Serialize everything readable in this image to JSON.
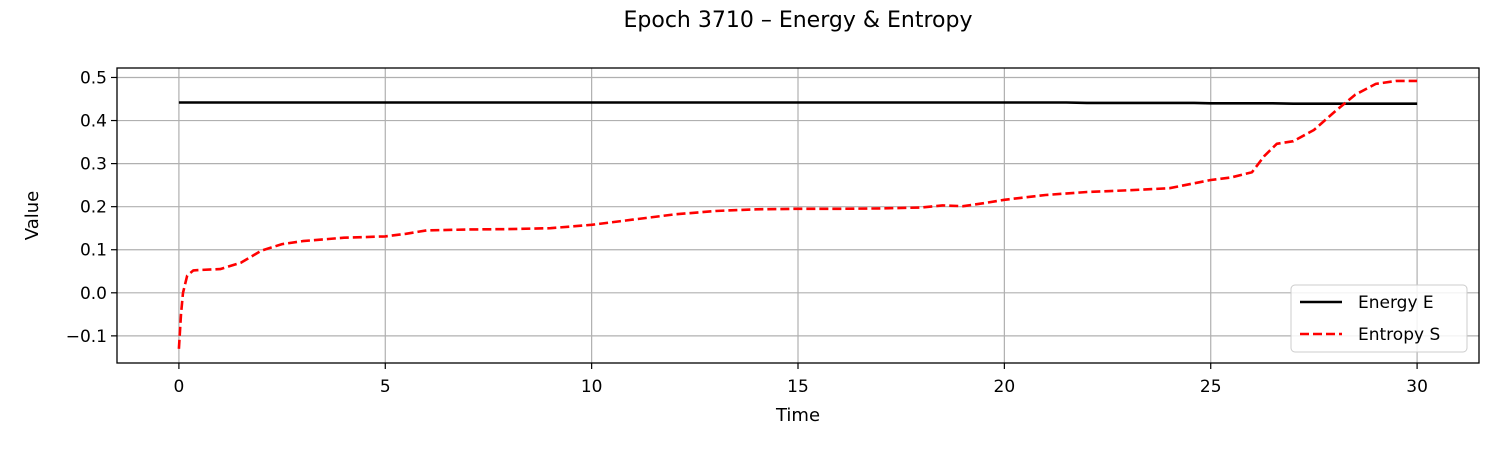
{
  "chart_data": {
    "type": "line",
    "title": "Epoch 3710 – Energy & Entropy",
    "xlabel": "Time",
    "ylabel": "Value",
    "xlim": [
      -1.5,
      31.5
    ],
    "ylim": [
      -0.163,
      0.522
    ],
    "xticks": [
      0,
      5,
      10,
      15,
      20,
      25,
      30
    ],
    "yticks": [
      -0.1,
      0.0,
      0.1,
      0.2,
      0.3,
      0.4,
      0.5
    ],
    "xtick_labels": [
      "0",
      "5",
      "10",
      "15",
      "20",
      "25",
      "30"
    ],
    "ytick_labels": [
      "−0.1",
      "0.0",
      "0.1",
      "0.2",
      "0.3",
      "0.4",
      "0.5"
    ],
    "grid": true,
    "legend_position": "lower-right",
    "series": [
      {
        "name": "Energy E",
        "color": "#000000",
        "style": "solid",
        "x": [
          0,
          2,
          4,
          6,
          8,
          10,
          12,
          14,
          16,
          18,
          20,
          21.5,
          22,
          24,
          24.6,
          25,
          25.5,
          26.5,
          27,
          28,
          29,
          30
        ],
        "y": [
          0.442,
          0.442,
          0.442,
          0.442,
          0.442,
          0.442,
          0.442,
          0.442,
          0.442,
          0.442,
          0.442,
          0.442,
          0.441,
          0.441,
          0.441,
          0.44,
          0.44,
          0.44,
          0.439,
          0.439,
          0.439,
          0.439
        ]
      },
      {
        "name": "Entropy S",
        "color": "#ff0000",
        "style": "dashed",
        "x": [
          0,
          0.05,
          0.1,
          0.2,
          0.35,
          0.5,
          1.0,
          1.5,
          2.0,
          2.5,
          3.0,
          4.0,
          5.0,
          5.5,
          6.0,
          7.0,
          8.0,
          9.0,
          10.0,
          11.0,
          12.0,
          13.0,
          14.0,
          15.0,
          16.0,
          17.0,
          18.0,
          18.5,
          19.0,
          19.5,
          20.0,
          21.0,
          22.0,
          23.0,
          24.0,
          25.0,
          25.5,
          26.0,
          26.3,
          26.6,
          27.0,
          27.5,
          28.0,
          28.5,
          29.0,
          29.5,
          30.0
        ],
        "y": [
          -0.13,
          -0.05,
          0.0,
          0.04,
          0.052,
          0.053,
          0.055,
          0.07,
          0.098,
          0.113,
          0.12,
          0.128,
          0.131,
          0.137,
          0.145,
          0.147,
          0.148,
          0.15,
          0.158,
          0.17,
          0.182,
          0.19,
          0.194,
          0.195,
          0.195,
          0.196,
          0.198,
          0.203,
          0.201,
          0.208,
          0.216,
          0.227,
          0.234,
          0.238,
          0.243,
          0.262,
          0.268,
          0.28,
          0.318,
          0.346,
          0.352,
          0.378,
          0.42,
          0.46,
          0.485,
          0.492,
          0.492
        ]
      }
    ]
  }
}
